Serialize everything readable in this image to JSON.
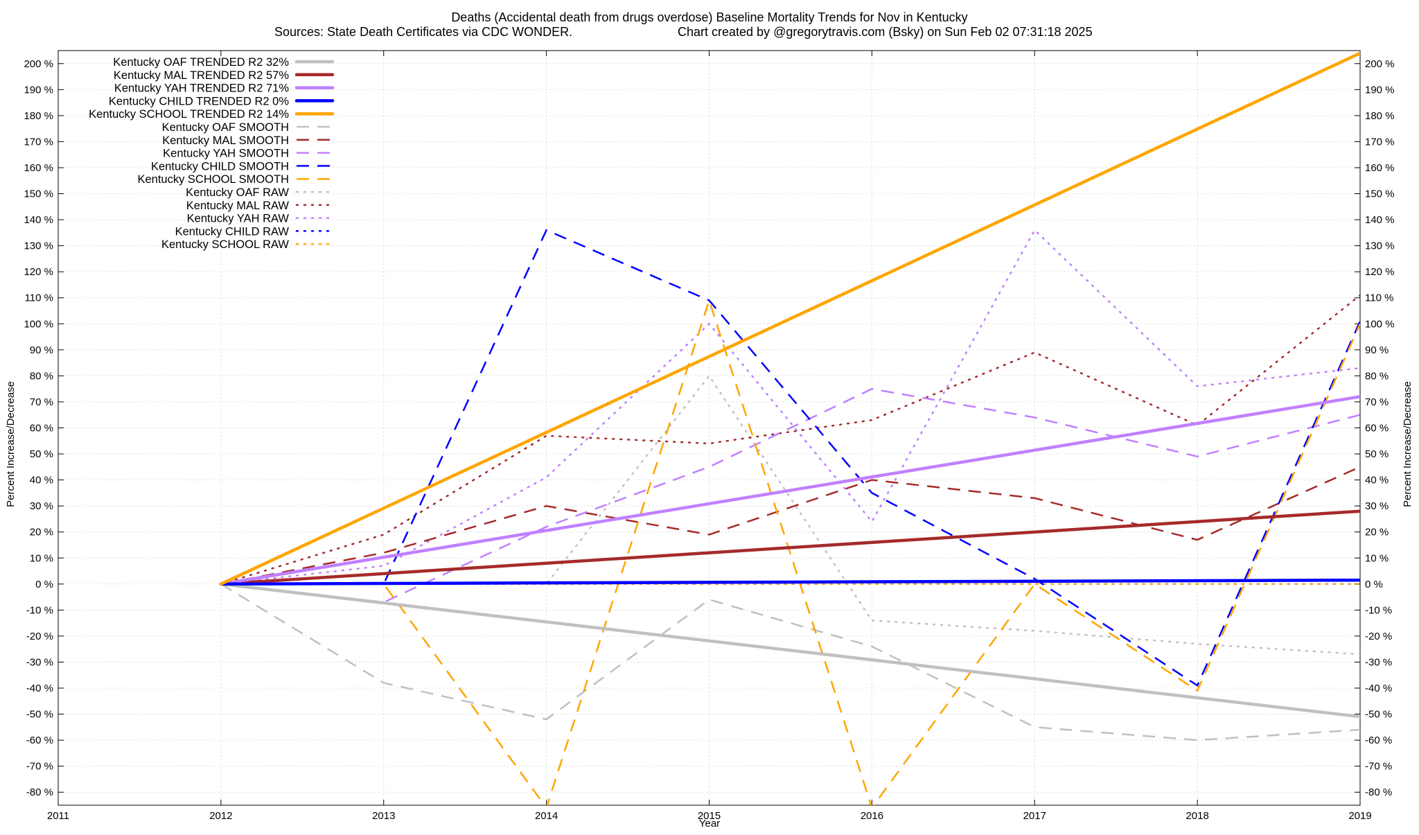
{
  "chart_data": {
    "type": "line",
    "title": "Deaths (Accidental death from drugs overdose)  Baseline Mortality Trends for Nov in Kentucky",
    "subtitle_left": "Sources: State Death Certificates via CDC WONDER.",
    "subtitle_right": "Chart created by @gregorytravis.com (Bsky) on Sun Feb 02 07:31:18 2025",
    "xlabel": "Year",
    "ylabel_left": "Percent Increase/Decrease",
    "ylabel_right": "Percent Increase/Decrease",
    "xlim": [
      2011,
      2019
    ],
    "ylim": [
      -85,
      205
    ],
    "x_ticks": [
      2011,
      2012,
      2013,
      2014,
      2015,
      2016,
      2017,
      2018,
      2019
    ],
    "y_ticks": [
      -80,
      -70,
      -60,
      -50,
      -40,
      -30,
      -20,
      -10,
      0,
      10,
      20,
      30,
      40,
      50,
      60,
      70,
      80,
      90,
      100,
      110,
      120,
      130,
      140,
      150,
      160,
      170,
      180,
      190,
      200
    ],
    "y_tick_suffix": " %",
    "grid": true,
    "legend_position": "top-left",
    "colors": {
      "OAF": "#c0c0c0",
      "MAL": "#a52a2a",
      "YAH": "#c080ff",
      "CHILD": "#0000ff",
      "SCHOOL": "#ffa500"
    },
    "series": [
      {
        "name": "Kentucky OAF TRENDED R2  32%",
        "group": "OAF",
        "style": "solid",
        "x": [
          2012,
          2019
        ],
        "values": [
          0,
          -51
        ]
      },
      {
        "name": "Kentucky MAL TRENDED R2  57%",
        "group": "MAL",
        "style": "solid",
        "x": [
          2012,
          2019
        ],
        "values": [
          0,
          28
        ]
      },
      {
        "name": "Kentucky YAH TRENDED R2  71%",
        "group": "YAH",
        "style": "solid",
        "x": [
          2012,
          2019
        ],
        "values": [
          0,
          72
        ]
      },
      {
        "name": "Kentucky CHILD TRENDED R2   0%",
        "group": "CHILD",
        "style": "solid",
        "x": [
          2012,
          2019
        ],
        "values": [
          0,
          1.5
        ]
      },
      {
        "name": "Kentucky SCHOOL TRENDED R2  14%",
        "group": "SCHOOL",
        "style": "solid",
        "x": [
          2012,
          2019
        ],
        "values": [
          0,
          204
        ]
      },
      {
        "name": "Kentucky OAF SMOOTH",
        "group": "OAF",
        "style": "dash",
        "x": [
          2012,
          2013,
          2014,
          2015,
          2016,
          2017,
          2018,
          2019
        ],
        "values": [
          0,
          -38,
          -52,
          -6,
          -24,
          -55,
          -60,
          -56
        ]
      },
      {
        "name": "Kentucky MAL SMOOTH",
        "group": "MAL",
        "style": "dash",
        "x": [
          2012,
          2013,
          2014,
          2015,
          2016,
          2017,
          2018,
          2019
        ],
        "values": [
          0,
          12,
          30,
          19,
          40,
          33,
          17,
          45
        ]
      },
      {
        "name": "Kentucky YAH SMOOTH",
        "group": "YAH",
        "style": "dash",
        "x": [
          2012,
          2013,
          2014,
          2015,
          2016,
          2017,
          2018,
          2019
        ],
        "values": [
          0,
          -7,
          22,
          45,
          75,
          64,
          49,
          65
        ]
      },
      {
        "name": "Kentucky CHILD SMOOTH",
        "group": "CHILD",
        "style": "dash",
        "x": [
          2012,
          2013,
          2014,
          2015,
          2016,
          2017,
          2018,
          2019
        ],
        "values": [
          0,
          0,
          136,
          109,
          35,
          2,
          -39,
          101
        ]
      },
      {
        "name": "Kentucky SCHOOL SMOOTH",
        "group": "SCHOOL",
        "style": "dash",
        "x": [
          2012,
          2013,
          2014,
          2015,
          2016,
          2017,
          2018,
          2019
        ],
        "values": [
          0,
          0,
          -86,
          109,
          -86,
          0,
          -41,
          100
        ]
      },
      {
        "name": "Kentucky OAF RAW",
        "group": "OAF",
        "style": "dot",
        "x": [
          2012,
          2013,
          2014,
          2015,
          2016,
          2017,
          2018,
          2019
        ],
        "values": [
          0,
          0,
          0,
          80,
          -14,
          -18,
          -23,
          -27
        ]
      },
      {
        "name": "Kentucky MAL RAW",
        "group": "MAL",
        "style": "dot",
        "x": [
          2012,
          2013,
          2014,
          2015,
          2016,
          2017,
          2018,
          2019
        ],
        "values": [
          0,
          19,
          57,
          54,
          63,
          89,
          61,
          111
        ]
      },
      {
        "name": "Kentucky YAH RAW",
        "group": "YAH",
        "style": "dot",
        "x": [
          2012,
          2013,
          2014,
          2015,
          2016,
          2017,
          2018,
          2019
        ],
        "values": [
          0,
          7,
          41,
          100,
          24,
          136,
          76,
          83
        ]
      },
      {
        "name": "Kentucky CHILD RAW",
        "group": "CHILD",
        "style": "dot",
        "x": [
          2012,
          2013,
          2014,
          2015,
          2016,
          2017,
          2018,
          2019
        ],
        "values": [
          0,
          0,
          0,
          0,
          0,
          0,
          0,
          0
        ]
      },
      {
        "name": "Kentucky SCHOOL RAW",
        "group": "SCHOOL",
        "style": "dot",
        "x": [
          2012,
          2013,
          2014,
          2015,
          2016,
          2017,
          2018,
          2019
        ],
        "values": [
          0,
          0,
          0,
          0,
          0,
          0,
          0,
          0
        ]
      }
    ]
  }
}
